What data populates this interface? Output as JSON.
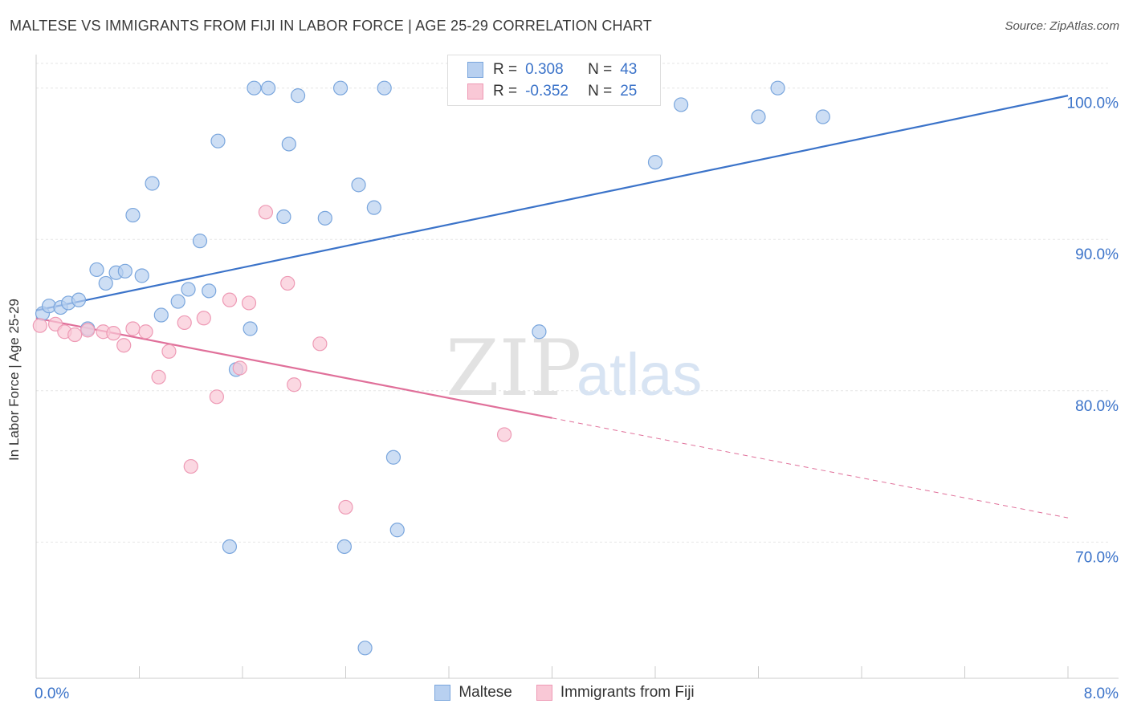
{
  "header": {
    "title": "MALTESE VS IMMIGRANTS FROM FIJI IN LABOR FORCE | AGE 25-29 CORRELATION CHART",
    "source": "Source: ZipAtlas.com"
  },
  "watermark": {
    "zip": "ZIP",
    "atlas": "atlas"
  },
  "legend": {
    "r_label": "R =",
    "n_label": "N =",
    "rows": [
      {
        "r": "0.308",
        "n": "43",
        "fill": "#b8d0f0",
        "stroke": "#7aa6dd"
      },
      {
        "r": "-0.352",
        "n": "25",
        "fill": "#f9c8d6",
        "stroke": "#ee9ab5"
      }
    ]
  },
  "chart_data": {
    "type": "scatter",
    "title": "MALTESE VS IMMIGRANTS FROM FIJI IN LABOR FORCE | AGE 25-29 CORRELATION CHART",
    "ylabel": "In Labor Force | Age 25-29",
    "xlabel": "",
    "xlim": [
      0,
      8
    ],
    "ylim": [
      61,
      102
    ],
    "x_tick_labels": {
      "min": "0.0%",
      "max": "8.0%"
    },
    "y_ticks": [
      {
        "value": 100,
        "label": "100.0%"
      },
      {
        "value": 90,
        "label": "90.0%"
      },
      {
        "value": 80,
        "label": "80.0%"
      },
      {
        "value": 70,
        "label": "70.0%"
      }
    ],
    "grid": true,
    "series": [
      {
        "name": "Maltese",
        "color": "#3b73c9",
        "fill": "#b8d0f0",
        "stroke": "#7aa6dd",
        "trend": {
          "x0": 0.0,
          "y0": 85.3,
          "x1": 8.0,
          "y1": 99.5,
          "dashed_from": null
        },
        "points": [
          [
            0.05,
            85.1
          ],
          [
            0.1,
            85.6
          ],
          [
            0.19,
            85.5
          ],
          [
            0.25,
            85.8
          ],
          [
            0.33,
            86.0
          ],
          [
            0.4,
            84.1
          ],
          [
            0.47,
            88.0
          ],
          [
            0.54,
            87.1
          ],
          [
            0.62,
            87.8
          ],
          [
            0.69,
            87.9
          ],
          [
            0.82,
            87.6
          ],
          [
            0.75,
            91.6
          ],
          [
            0.9,
            93.7
          ],
          [
            0.97,
            85.0
          ],
          [
            1.1,
            85.9
          ],
          [
            1.18,
            86.7
          ],
          [
            1.27,
            89.9
          ],
          [
            1.34,
            86.6
          ],
          [
            1.41,
            96.5
          ],
          [
            1.55,
            81.4
          ],
          [
            1.66,
            84.1
          ],
          [
            1.69,
            100.0
          ],
          [
            1.8,
            100.0
          ],
          [
            1.92,
            91.5
          ],
          [
            1.96,
            96.3
          ],
          [
            2.03,
            99.5
          ],
          [
            2.24,
            91.4
          ],
          [
            2.36,
            100.0
          ],
          [
            2.5,
            93.6
          ],
          [
            2.62,
            92.1
          ],
          [
            2.7,
            100.0
          ],
          [
            2.77,
            75.6
          ],
          [
            2.8,
            70.8
          ],
          [
            3.3,
            100.0
          ],
          [
            3.9,
            83.9
          ],
          [
            4.8,
            95.1
          ],
          [
            5.0,
            98.9
          ],
          [
            5.6,
            98.1
          ],
          [
            5.75,
            100.0
          ],
          [
            6.1,
            98.1
          ],
          [
            1.5,
            69.7
          ],
          [
            2.39,
            69.7
          ],
          [
            2.55,
            63.0
          ]
        ]
      },
      {
        "name": "Immigrants from Fiji",
        "color": "#e0709a",
        "fill": "#f9c8d6",
        "stroke": "#ee9ab5",
        "trend": {
          "x0": 0.0,
          "y0": 84.8,
          "x1": 8.0,
          "y1": 71.6,
          "dashed_from": 4.0
        },
        "points": [
          [
            0.03,
            84.3
          ],
          [
            0.15,
            84.4
          ],
          [
            0.22,
            83.9
          ],
          [
            0.3,
            83.7
          ],
          [
            0.4,
            84.0
          ],
          [
            0.52,
            83.9
          ],
          [
            0.6,
            83.8
          ],
          [
            0.68,
            83.0
          ],
          [
            0.75,
            84.1
          ],
          [
            0.85,
            83.9
          ],
          [
            0.95,
            80.9
          ],
          [
            1.03,
            82.6
          ],
          [
            1.15,
            84.5
          ],
          [
            1.2,
            75.0
          ],
          [
            1.3,
            84.8
          ],
          [
            1.4,
            79.6
          ],
          [
            1.5,
            86.0
          ],
          [
            1.58,
            81.5
          ],
          [
            1.65,
            85.8
          ],
          [
            1.78,
            91.8
          ],
          [
            1.95,
            87.1
          ],
          [
            2.0,
            80.4
          ],
          [
            2.2,
            83.1
          ],
          [
            2.4,
            72.3
          ],
          [
            3.63,
            77.1
          ]
        ]
      }
    ]
  }
}
